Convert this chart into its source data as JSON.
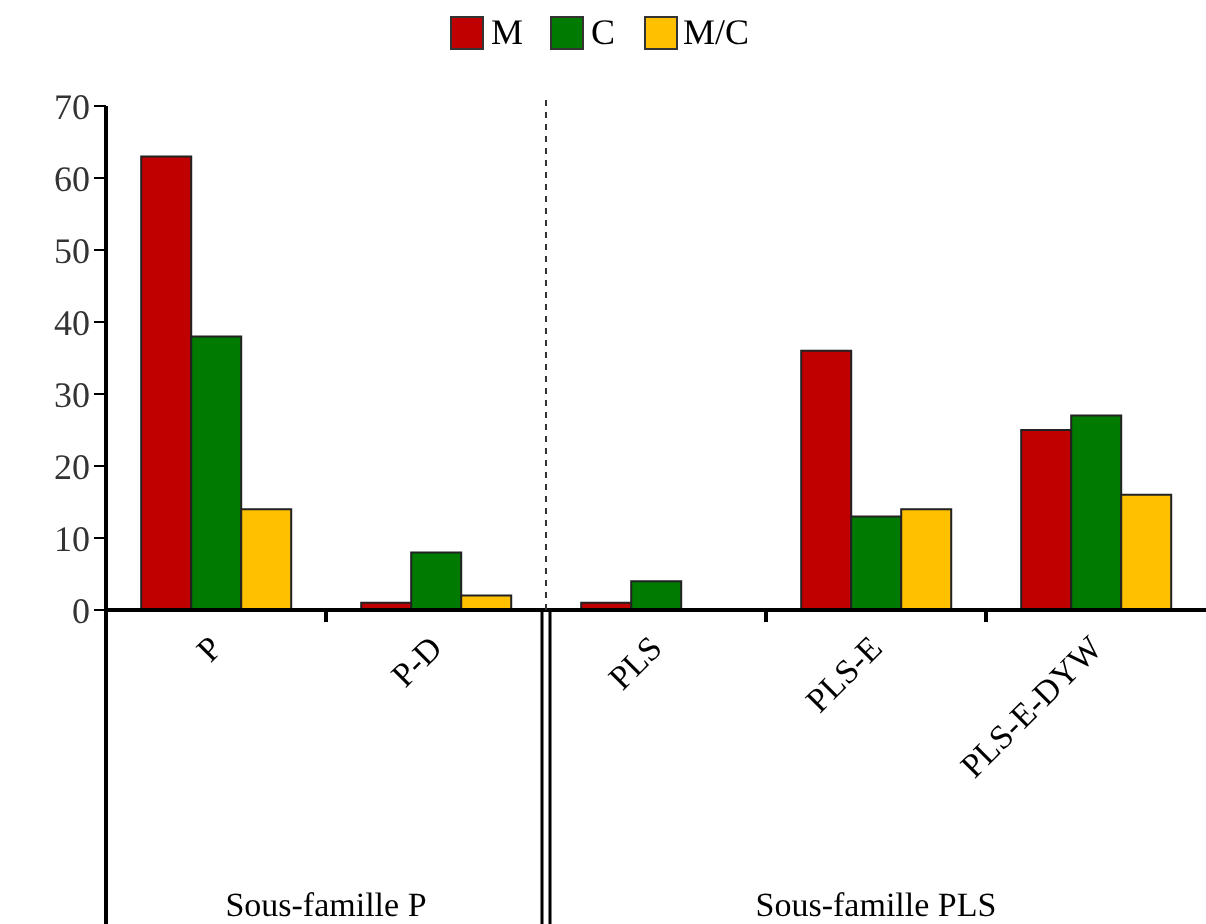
{
  "chart_data": {
    "type": "bar",
    "categories": [
      "P",
      "P-D",
      "PLS",
      "PLS-E",
      "PLS-E-DYW"
    ],
    "series": [
      {
        "name": "M",
        "color": "#c00000",
        "values": [
          63,
          1,
          1,
          36,
          25
        ]
      },
      {
        "name": "C",
        "color": "#007a00",
        "values": [
          38,
          8,
          4,
          13,
          27
        ]
      },
      {
        "name": "M/C",
        "color": "#ffc000",
        "values": [
          14,
          2,
          0,
          14,
          16
        ]
      }
    ],
    "ylim": [
      0,
      70
    ],
    "yticks": [
      0,
      10,
      20,
      30,
      40,
      50,
      60,
      70
    ],
    "legend": "top",
    "annotations": [
      "Sous-famille P",
      "Sous-famille PLS"
    ]
  }
}
